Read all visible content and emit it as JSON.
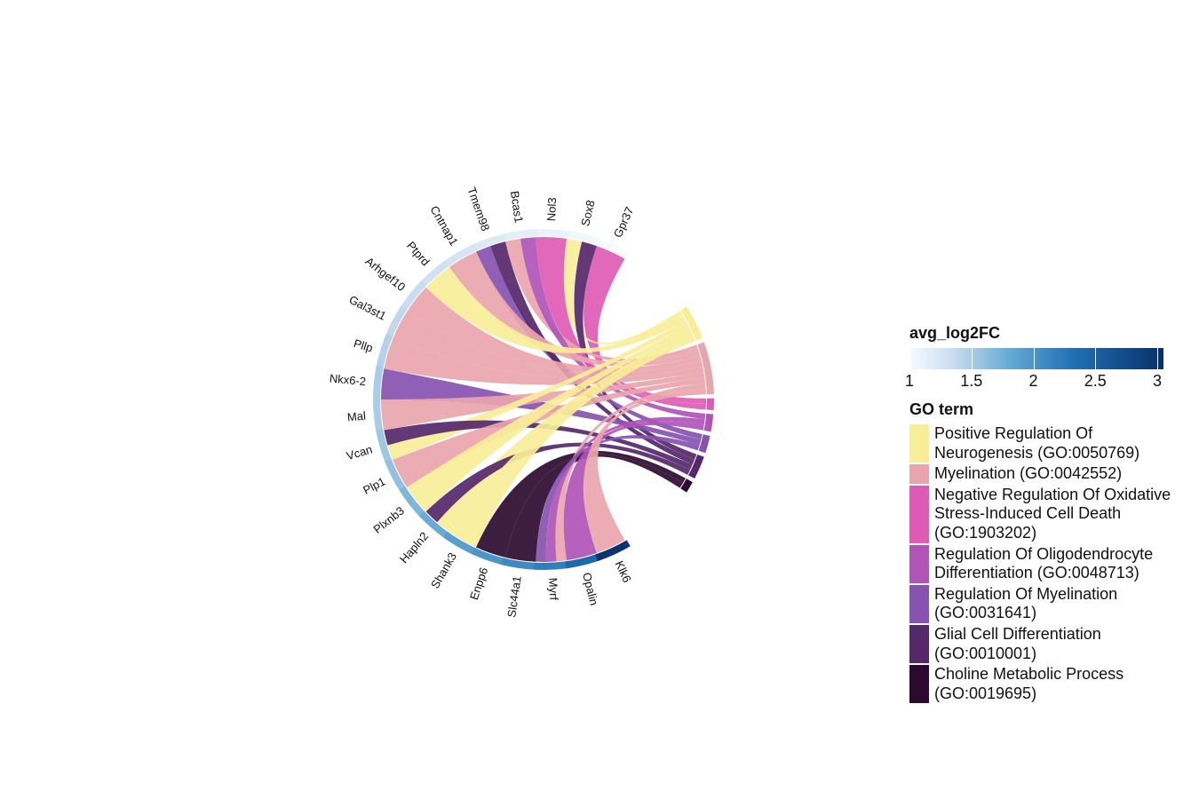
{
  "chart_data": {
    "type": "chord",
    "genes": [
      {
        "name": "Gpr37",
        "avg_log2FC": 1.0
      },
      {
        "name": "Sox8",
        "avg_log2FC": 1.05
      },
      {
        "name": "Nol3",
        "avg_log2FC": 1.1
      },
      {
        "name": "Bcas1",
        "avg_log2FC": 1.15
      },
      {
        "name": "Tmem98",
        "avg_log2FC": 1.2
      },
      {
        "name": "Cntnap1",
        "avg_log2FC": 1.25
      },
      {
        "name": "Ptprd",
        "avg_log2FC": 1.3
      },
      {
        "name": "Arhgef10",
        "avg_log2FC": 1.35
      },
      {
        "name": "Gal3st1",
        "avg_log2FC": 1.4
      },
      {
        "name": "Pllp",
        "avg_log2FC": 1.45
      },
      {
        "name": "Nkx6-2",
        "avg_log2FC": 1.5
      },
      {
        "name": "Mal",
        "avg_log2FC": 1.5
      },
      {
        "name": "Vcan",
        "avg_log2FC": 1.55
      },
      {
        "name": "Plp1",
        "avg_log2FC": 1.6
      },
      {
        "name": "Plxnb3",
        "avg_log2FC": 1.7
      },
      {
        "name": "Hapln2",
        "avg_log2FC": 1.8
      },
      {
        "name": "Shank3",
        "avg_log2FC": 1.9
      },
      {
        "name": "Enpp6",
        "avg_log2FC": 2.0
      },
      {
        "name": "Slc44a1",
        "avg_log2FC": 2.1
      },
      {
        "name": "Myrf",
        "avg_log2FC": 2.2
      },
      {
        "name": "Opalin",
        "avg_log2FC": 2.4
      },
      {
        "name": "Klk6",
        "avg_log2FC": 3.0
      }
    ],
    "go_terms": [
      {
        "label": "Positive Regulation Of Neurogenesis (GO:0050769)",
        "color": "#f8ee98"
      },
      {
        "label": "Myelination (GO:0042552)",
        "color": "#e9a5ac"
      },
      {
        "label": "Negative Regulation Of Oxidative Stress-Induced Cell Death (GO:1903202)",
        "color": "#de5bb5"
      },
      {
        "label": "Regulation Of Oligodendrocyte Differentiation (GO:0048713)",
        "color": "#b054b8"
      },
      {
        "label": "Regulation Of Myelination (GO:0031641)",
        "color": "#8752b0"
      },
      {
        "label": "Glial Cell Differentiation (GO:0010001)",
        "color": "#55286a"
      },
      {
        "label": "Choline Metabolic Process (GO:0019695)",
        "color": "#2c0a30"
      }
    ],
    "links": [
      {
        "gene": "Gpr37",
        "term": 2
      },
      {
        "gene": "Sox8",
        "term": 0
      },
      {
        "gene": "Sox8",
        "term": 5
      },
      {
        "gene": "Nol3",
        "term": 2
      },
      {
        "gene": "Bcas1",
        "term": 1
      },
      {
        "gene": "Bcas1",
        "term": 3
      },
      {
        "gene": "Tmem98",
        "term": 4
      },
      {
        "gene": "Tmem98",
        "term": 5
      },
      {
        "gene": "Cntnap1",
        "term": 1
      },
      {
        "gene": "Ptprd",
        "term": 0
      },
      {
        "gene": "Arhgef10",
        "term": 1
      },
      {
        "gene": "Gal3st1",
        "term": 1
      },
      {
        "gene": "Pllp",
        "term": 1
      },
      {
        "gene": "Nkx6-2",
        "term": 4
      },
      {
        "gene": "Mal",
        "term": 1
      },
      {
        "gene": "Vcan",
        "term": 0
      },
      {
        "gene": "Vcan",
        "term": 5
      },
      {
        "gene": "Plp1",
        "term": 1
      },
      {
        "gene": "Plxnb3",
        "term": 0
      },
      {
        "gene": "Hapln2",
        "term": 0
      },
      {
        "gene": "Hapln2",
        "term": 5
      },
      {
        "gene": "Shank3",
        "term": 0
      },
      {
        "gene": "Enpp6",
        "term": 6
      },
      {
        "gene": "Slc44a1",
        "term": 6
      },
      {
        "gene": "Myrf",
        "term": 1
      },
      {
        "gene": "Myrf",
        "term": 3
      },
      {
        "gene": "Myrf",
        "term": 4
      },
      {
        "gene": "Opalin",
        "term": 3
      },
      {
        "gene": "Klk6",
        "term": 1
      }
    ],
    "colorbar": {
      "title": "avg_log2FC",
      "min": 1,
      "max": 3.05,
      "ticks": [
        1,
        1.5,
        2,
        2.5,
        3
      ],
      "tick_labels": [
        "1",
        "1.5",
        "2",
        "2.5",
        "3"
      ],
      "colors": [
        "#f7fbff",
        "#c6dbef",
        "#6baed6",
        "#2171b5",
        "#08306b"
      ]
    },
    "legend_title": "GO term"
  }
}
